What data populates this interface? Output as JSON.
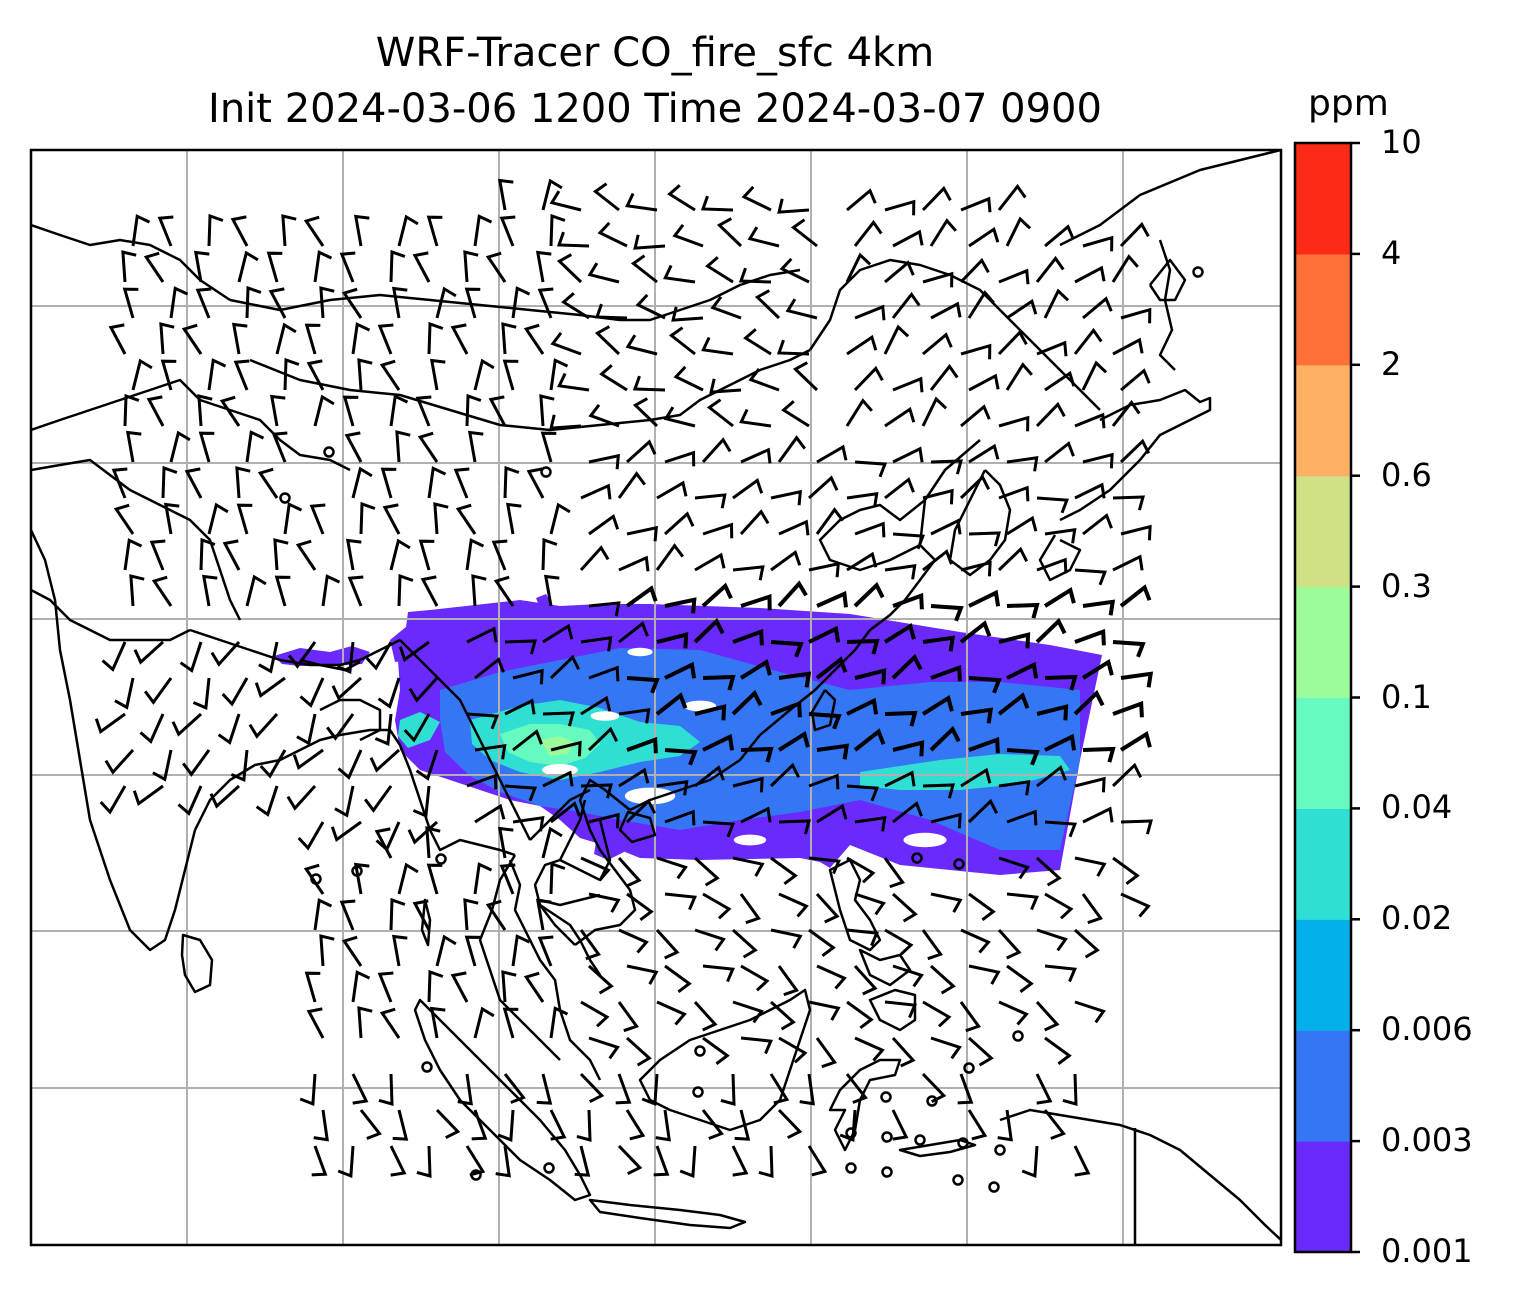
{
  "title": {
    "line1": "WRF-Tracer CO_fire_sfc 4km",
    "line2": "Init 2024-03-06 1200 Time 2024-03-07 0900"
  },
  "colorbar": {
    "units": "ppm",
    "levels": [
      "0.001",
      "0.003",
      "0.006",
      "0.02",
      "0.04",
      "0.1",
      "0.3",
      "0.6",
      "2",
      "4",
      "10"
    ],
    "colors": [
      "#6a2afc",
      "#3476f4",
      "#04b0ea",
      "#30dfd3",
      "#66fac1",
      "#9cfb9a",
      "#cfe185",
      "#fdaf63",
      "#fe7038",
      "#fc2a16"
    ]
  },
  "map": {
    "gridlines": true,
    "coastline_color": "#000000",
    "wind_barb_color": "#000000",
    "plume_colors": {
      "outer": "#6a2afc",
      "mid": "#3476f4",
      "inner": "#30dfd3",
      "core": "#66fac1",
      "peak": "#9cfb9a"
    }
  }
}
